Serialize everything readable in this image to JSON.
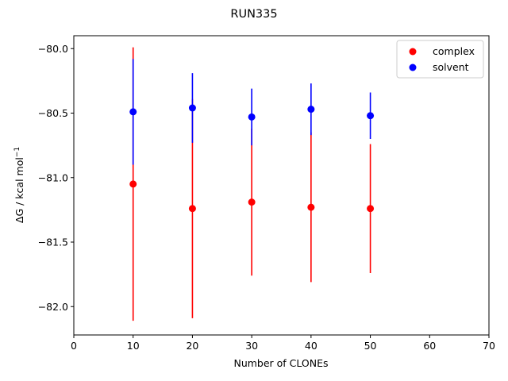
{
  "chart_data": {
    "type": "scatter",
    "title": "RUN335",
    "xlabel": "Number of CLONEs",
    "ylabel": "ΔG / kcal mol",
    "ylabel_sup": "−1",
    "xlim": [
      0,
      70
    ],
    "ylim": [
      -82.22,
      -79.9
    ],
    "xticks": [
      0,
      10,
      20,
      30,
      40,
      50,
      60,
      70
    ],
    "xtick_labels": [
      "0",
      "10",
      "20",
      "30",
      "40",
      "50",
      "60",
      "70"
    ],
    "yticks": [
      -80.0,
      -80.5,
      -81.0,
      -81.5,
      -82.0
    ],
    "ytick_labels": [
      "−80.0",
      "−80.5",
      "−81.0",
      "−81.5",
      "−82.0"
    ],
    "grid": false,
    "legend_position": "top-right",
    "series": [
      {
        "name": "complex",
        "color": "#ff0000",
        "x": [
          10,
          20,
          30,
          40,
          50
        ],
        "y": [
          -81.05,
          -81.24,
          -81.19,
          -81.23,
          -81.24
        ],
        "yerr": [
          1.06,
          0.85,
          0.57,
          0.58,
          0.5
        ]
      },
      {
        "name": "solvent",
        "color": "#0000ff",
        "x": [
          10,
          20,
          30,
          40,
          50
        ],
        "y": [
          -80.49,
          -80.46,
          -80.53,
          -80.47,
          -80.52
        ],
        "yerr": [
          0.41,
          0.27,
          0.22,
          0.2,
          0.18
        ]
      }
    ]
  }
}
